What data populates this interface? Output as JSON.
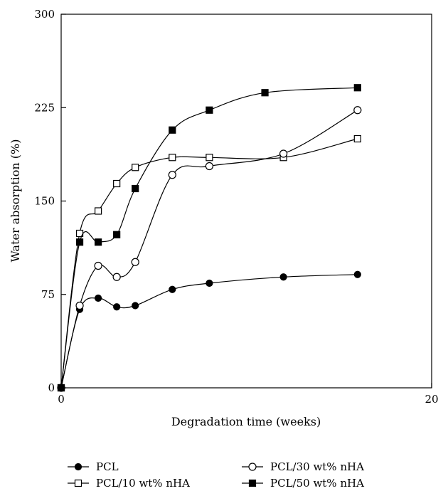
{
  "chart_data": {
    "type": "line",
    "title": "",
    "xlabel": "Degradation time (weeks)",
    "ylabel": "Water absorption (%)",
    "xlim": [
      0,
      20
    ],
    "ylim": [
      0,
      300
    ],
    "x_ticks": [
      "0",
      "20"
    ],
    "y_ticks": [
      "0",
      "75",
      "150",
      "225",
      "300"
    ],
    "grid": false,
    "legend_position": "bottom",
    "series": [
      {
        "name": "PCL",
        "marker": "filled-circle",
        "x": [
          0,
          1,
          2,
          3,
          4,
          6,
          8,
          12,
          16
        ],
        "y": [
          0,
          63,
          72,
          65,
          66,
          79,
          84,
          89,
          91
        ]
      },
      {
        "name": "PCL/10 wt% nHA",
        "marker": "open-square",
        "x": [
          0,
          1,
          2,
          3,
          4,
          6,
          8,
          12,
          16
        ],
        "y": [
          0,
          124,
          142,
          164,
          177,
          185,
          185,
          185,
          200
        ]
      },
      {
        "name": "PCL/30 wt% nHA",
        "marker": "open-circle",
        "x": [
          0,
          1,
          2,
          3,
          4,
          6,
          8,
          12,
          16
        ],
        "y": [
          0,
          66,
          98,
          89,
          101,
          171,
          178,
          188,
          223
        ]
      },
      {
        "name": "PCL/50 wt% nHA",
        "marker": "filled-square",
        "x": [
          0,
          1,
          2,
          3,
          4,
          6,
          8,
          11,
          16
        ],
        "y": [
          0,
          117,
          117,
          123,
          160,
          207,
          223,
          237,
          241
        ]
      }
    ]
  }
}
